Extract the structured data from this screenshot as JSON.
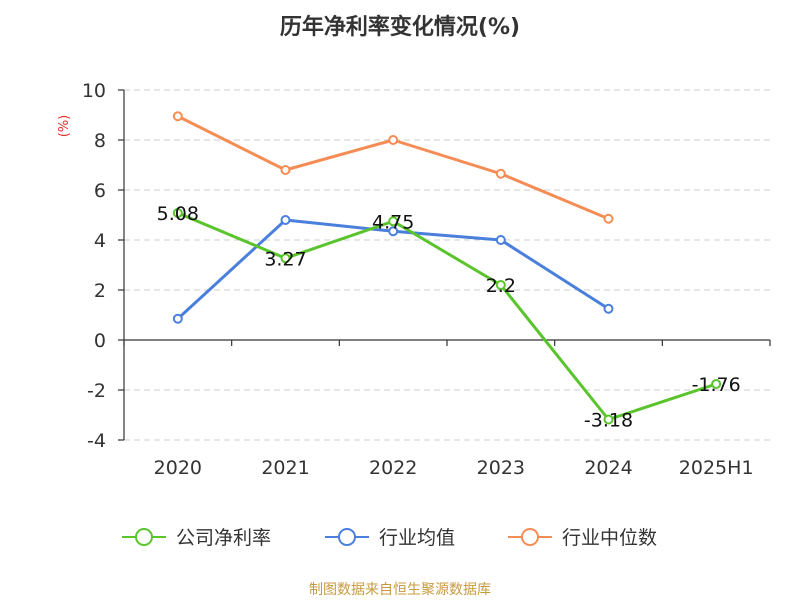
{
  "chart_data": {
    "type": "line",
    "title": "历年净利率变化情况(%)",
    "ylabel": "(%)",
    "xlabel": "",
    "categories": [
      "2020",
      "2021",
      "2022",
      "2023",
      "2024",
      "2025H1"
    ],
    "ylim": [
      -4,
      10
    ],
    "yticks": [
      10,
      8,
      6,
      4,
      2,
      0,
      -2,
      -4
    ],
    "grid": true,
    "legend_position": "bottom",
    "series": [
      {
        "name": "公司净利率",
        "color": "#5ac42d",
        "values": [
          5.08,
          3.27,
          4.75,
          2.2,
          -3.18,
          -1.76
        ],
        "labels": [
          "5.08",
          "3.27",
          "4.75",
          "2.2",
          "-3.18",
          "-1.76"
        ]
      },
      {
        "name": "行业均值",
        "color": "#4a7fdc",
        "values": [
          0.85,
          4.8,
          4.35,
          4.0,
          1.25,
          null
        ]
      },
      {
        "name": "行业中位数",
        "color": "#f68c55",
        "values": [
          8.95,
          6.8,
          8.0,
          6.65,
          4.85,
          null
        ]
      }
    ]
  },
  "footer": {
    "source": "制图数据来自恒生聚源数据库"
  }
}
